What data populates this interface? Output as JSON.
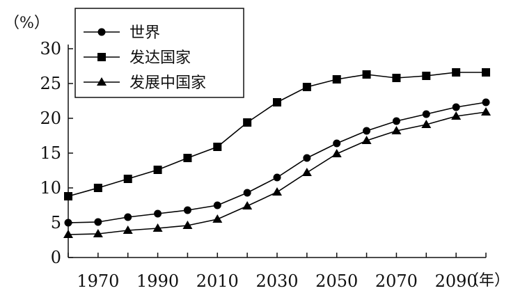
{
  "chart_data": {
    "type": "line",
    "ylabel": "（%）",
    "xlabel": "（年）",
    "ylim": [
      0,
      30
    ],
    "yticks": [
      0,
      5,
      10,
      15,
      20,
      25,
      30
    ],
    "xlim": [
      1960,
      2100
    ],
    "xtick_labels": [
      "1970",
      "1990",
      "2010",
      "2030",
      "2050",
      "2070",
      "2090"
    ],
    "x": [
      1960,
      1970,
      1980,
      1990,
      2000,
      2010,
      2020,
      2030,
      2040,
      2050,
      2060,
      2070,
      2080,
      2090,
      2100
    ],
    "legend_position": "top-left",
    "series": [
      {
        "name": "世界",
        "marker": "circle",
        "values": [
          5.0,
          5.1,
          5.8,
          6.3,
          6.8,
          7.5,
          9.3,
          11.5,
          14.3,
          16.4,
          18.2,
          19.6,
          20.6,
          21.6,
          22.3
        ]
      },
      {
        "name": "发达国家",
        "marker": "square",
        "values": [
          8.8,
          10.0,
          11.3,
          12.6,
          14.3,
          15.9,
          19.4,
          22.3,
          24.5,
          25.6,
          26.3,
          25.8,
          26.1,
          26.6,
          26.6
        ]
      },
      {
        "name": "发展中国家",
        "marker": "triangle",
        "values": [
          3.3,
          3.4,
          3.9,
          4.2,
          4.6,
          5.5,
          7.4,
          9.4,
          12.2,
          14.9,
          16.8,
          18.2,
          19.1,
          20.3,
          20.9
        ]
      }
    ]
  }
}
